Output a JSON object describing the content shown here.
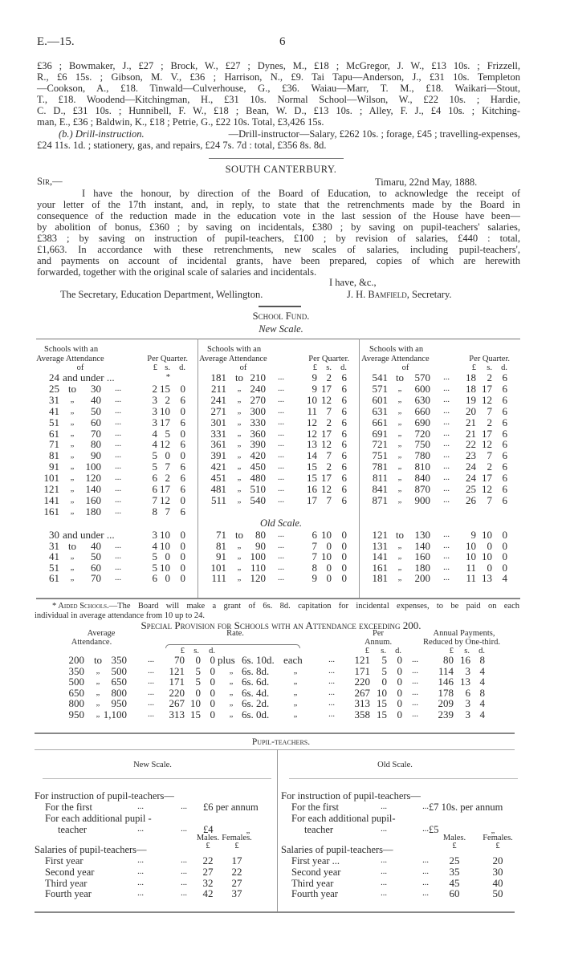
{
  "header": {
    "code": "E.—15.",
    "page": "6"
  },
  "para1": {
    "lines": [
      "£36 ; Bowmaker, J., £27 ; Brock, W., £27 ; Dynes, M., £18 ; McGregor, J. W., £13 10s. ; Frizzell,",
      "R., £6 15s. ; Gibson, M. V., £36 ; Harrison, N., £9. Tai Tapu—Anderson, J., £31 10s. Templeton",
      "—Cookson, A., £18. Tinwald—Culverhouse, G., £36. Waiau—Marr, T. M., £18. Waikari—Stout,",
      "T., £18. Woodend—Kitchingman, H., £31 10s. Normal School—Wilson, W., £22 10s. ; Hardie,",
      "C. D., £31 10s. ; Hunnibell, F. W., £18 ; Bean, W. D., £13 10s. ; Alley, F. J., £4 10s. ; Kitching-",
      "man, E., £36 ; Baldwin, K., £18 ; Petrie, G., £22 10s. Total, £3,426 15s."
    ],
    "drill_label": "(b.) Drill-instruction.",
    "drill_line1": "—Drill-instructor—Salary, £262 10s. ; forage, £45 ; travelling-expenses,",
    "drill_line2": "£24 11s. 1d. ; stationery, gas, and repairs, £24 7s. 7d : total, £356 8s. 8d."
  },
  "letter": {
    "title": "SOUTH CANTERBURY.",
    "salutation": "Sir,—",
    "place_date": "Timaru, 22nd May, 1888.",
    "lines": [
      "I have the honour, by direction of the Board of Education, to acknowledge the receipt of",
      "your letter of the 17th instant, and, in reply, to state that the retrenchments made by the Board in",
      "consequence of the reduction made in the education vote in the last session of the House have been—",
      "by abolition of bonus, £360 ; by saving on incidentals, £380 ; by saving on pupil-teachers' salaries,",
      "£383 ; by saving on instruction of pupil-teachers, £100 ; by revision of salaries, £440 : total,",
      "£1,663. In accordance with these retrenchments, new scales of salaries, including pupil-teachers',",
      "and payments on account of incidental grants, have been prepared, copies of which are herewith",
      "forwarded, together with the original scale of salaries and incidentals."
    ],
    "closing": "I have, &c.,",
    "addressee": "The Secretary, Education Department, Wellington.",
    "signer_initials": "J. H.",
    "signer_name": "Bamfield",
    "signer_title": ", Secretary."
  },
  "school_fund": {
    "title": "School Fund.",
    "new_scale_title": "New Scale.",
    "old_scale_title": "Old Scale.",
    "col_header": {
      "l1": "Schools with an",
      "l2": "Average Attendance",
      "l3": "of",
      "per": "Per Quarter.",
      "pounds": "£",
      "shillings": "s.",
      "pence": "d."
    },
    "leader": "...",
    "new_scale": [
      [
        [
          "24",
          "and under",
          "",
          "",
          "*",
          ""
        ],
        [
          "25",
          "to",
          "30",
          "2",
          "15",
          "0"
        ],
        [
          "31",
          "„",
          "40",
          "3",
          "2",
          "6"
        ],
        [
          "41",
          "„",
          "50",
          "3",
          "10",
          "0"
        ],
        [
          "51",
          "„",
          "60",
          "3",
          "17",
          "6"
        ],
        [
          "61",
          "„",
          "70",
          "4",
          "5",
          "0"
        ],
        [
          "71",
          "„",
          "80",
          "4",
          "12",
          "6"
        ],
        [
          "81",
          "„",
          "90",
          "5",
          "0",
          "0"
        ],
        [
          "91",
          "„",
          "100",
          "5",
          "7",
          "6"
        ],
        [
          "101",
          "„",
          "120",
          "6",
          "2",
          "6"
        ],
        [
          "121",
          "„",
          "140",
          "6",
          "17",
          "6"
        ],
        [
          "141",
          "„",
          "160",
          "7",
          "12",
          "0"
        ],
        [
          "161",
          "„",
          "180",
          "8",
          "7",
          "6"
        ]
      ],
      [
        [
          "181",
          "to",
          "210",
          "9",
          "2",
          "6"
        ],
        [
          "211",
          "„",
          "240",
          "9",
          "17",
          "6"
        ],
        [
          "241",
          "„",
          "270",
          "10",
          "12",
          "6"
        ],
        [
          "271",
          "„",
          "300",
          "11",
          "7",
          "6"
        ],
        [
          "301",
          "„",
          "330",
          "12",
          "2",
          "6"
        ],
        [
          "331",
          "„",
          "360",
          "12",
          "17",
          "6"
        ],
        [
          "361",
          "„",
          "390",
          "13",
          "12",
          "6"
        ],
        [
          "391",
          "„",
          "420",
          "14",
          "7",
          "6"
        ],
        [
          "421",
          "„",
          "450",
          "15",
          "2",
          "6"
        ],
        [
          "451",
          "„",
          "480",
          "15",
          "17",
          "6"
        ],
        [
          "481",
          "„",
          "510",
          "16",
          "12",
          "6"
        ],
        [
          "511",
          "„",
          "540",
          "17",
          "7",
          "6"
        ]
      ],
      [
        [
          "541",
          "to",
          "570",
          "18",
          "2",
          "6"
        ],
        [
          "571",
          "„",
          "600",
          "18",
          "17",
          "6"
        ],
        [
          "601",
          "„",
          "630",
          "19",
          "12",
          "6"
        ],
        [
          "631",
          "„",
          "660",
          "20",
          "7",
          "6"
        ],
        [
          "661",
          "„",
          "690",
          "21",
          "2",
          "6"
        ],
        [
          "691",
          "„",
          "720",
          "21",
          "17",
          "6"
        ],
        [
          "721",
          "„",
          "750",
          "22",
          "12",
          "6"
        ],
        [
          "751",
          "„",
          "780",
          "23",
          "7",
          "6"
        ],
        [
          "781",
          "„",
          "810",
          "24",
          "2",
          "6"
        ],
        [
          "811",
          "„",
          "840",
          "24",
          "17",
          "6"
        ],
        [
          "841",
          "„",
          "870",
          "25",
          "12",
          "6"
        ],
        [
          "871",
          "„",
          "900",
          "26",
          "7",
          "6"
        ]
      ]
    ],
    "old_scale": [
      [
        [
          "30",
          "and under",
          "",
          "3",
          "10",
          "0"
        ],
        [
          "31",
          "to",
          "40",
          "4",
          "10",
          "0"
        ],
        [
          "41",
          "„",
          "50",
          "5",
          "0",
          "0"
        ],
        [
          "51",
          "„",
          "60",
          "5",
          "10",
          "0"
        ],
        [
          "61",
          "„",
          "70",
          "6",
          "0",
          "0"
        ]
      ],
      [
        [
          "71",
          "to",
          "80",
          "6",
          "10",
          "0"
        ],
        [
          "81",
          "„",
          "90",
          "7",
          "0",
          "0"
        ],
        [
          "91",
          "„",
          "100",
          "7",
          "10",
          "0"
        ],
        [
          "101",
          "„",
          "110",
          "8",
          "0",
          "0"
        ],
        [
          "111",
          "„",
          "120",
          "9",
          "0",
          "0"
        ]
      ],
      [
        [
          "121",
          "to",
          "130",
          "9",
          "10",
          "0"
        ],
        [
          "131",
          "„",
          "140",
          "10",
          "0",
          "0"
        ],
        [
          "141",
          "„",
          "160",
          "10",
          "10",
          "0"
        ],
        [
          "161",
          "„",
          "180",
          "11",
          "0",
          "0"
        ],
        [
          "181",
          "„",
          "200",
          "11",
          "13",
          "4"
        ]
      ]
    ],
    "footnote_label": "* Aided Schools.",
    "footnote_line1": "—The Board will make a grant of 6s. 8d. capitation for incidental expenses, to be paid on each",
    "footnote_line2": "individual in average attendance from 10 up to 24."
  },
  "special": {
    "title": "Special Provision for Schools with an Attendance exceeding 200.",
    "h_avg1": "Average",
    "h_avg2": "Attendance.",
    "h_rate": "Rate.",
    "h_per1": "Per",
    "h_per2": "Annum.",
    "h_ann1": "Annual Payments,",
    "h_ann2": "Reduced by One-third.",
    "units": [
      "£",
      "s.",
      "d."
    ],
    "rows": [
      [
        "200",
        "to",
        "350",
        "70",
        "0",
        "0",
        "plus",
        "6s. 10d.",
        "each",
        "121",
        "5",
        "0",
        "80",
        "16",
        "8"
      ],
      [
        "350",
        "„",
        "500",
        "121",
        "5",
        "0",
        "„",
        "6s. 8d.",
        "„",
        "171",
        "5",
        "0",
        "114",
        "3",
        "4"
      ],
      [
        "500",
        "„",
        "650",
        "171",
        "5",
        "0",
        "„",
        "6s. 6d.",
        "„",
        "220",
        "0",
        "0",
        "146",
        "13",
        "4"
      ],
      [
        "650",
        "„",
        "800",
        "220",
        "0",
        "0",
        "„",
        "6s. 4d.",
        "„",
        "267",
        "10",
        "0",
        "178",
        "6",
        "8"
      ],
      [
        "800",
        "„",
        "950",
        "267",
        "10",
        "0",
        "„",
        "6s. 2d.",
        "„",
        "313",
        "15",
        "0",
        "209",
        "3",
        "4"
      ],
      [
        "950",
        "„",
        "1,100",
        "313",
        "15",
        "0",
        "„",
        "6s. 0d.",
        "„",
        "358",
        "15",
        "0",
        "239",
        "3",
        "4"
      ]
    ]
  },
  "pupil_teachers": {
    "title": "Pupil-teachers.",
    "new": {
      "heading": "New Scale.",
      "instr": "For instruction of pupil-teachers—",
      "first": "For the first",
      "first_amt": "£6 per annum",
      "additional": "For each additional pupil -",
      "teacher": "teacher",
      "add_amt": "£4",
      "ditto": "„",
      "males": "Males.",
      "females": "Females.",
      "unit": "£",
      "salaries": "Salaries of pupil-teachers—",
      "years": [
        [
          "First year",
          "22",
          "17"
        ],
        [
          "Second year",
          "27",
          "22"
        ],
        [
          "Third year",
          "32",
          "27"
        ],
        [
          "Fourth year",
          "42",
          "37"
        ]
      ]
    },
    "old": {
      "heading": "Old Scale.",
      "instr": "For instruction of pupil-teachers—",
      "first": "For the first",
      "first_amt": "£7 10s. per annum",
      "additional": "For each additional pupil-",
      "teacher": "teacher",
      "add_amt": "£5",
      "ditto": "„",
      "males": "Males.",
      "females": "Females.",
      "unit": "£",
      "salaries": "Salaries of pupil-teachers—",
      "years": [
        [
          "First year ...",
          "25",
          "20"
        ],
        [
          "Second year",
          "35",
          "30"
        ],
        [
          "Third year",
          "45",
          "40"
        ],
        [
          "Fourth year",
          "60",
          "50"
        ]
      ]
    }
  }
}
